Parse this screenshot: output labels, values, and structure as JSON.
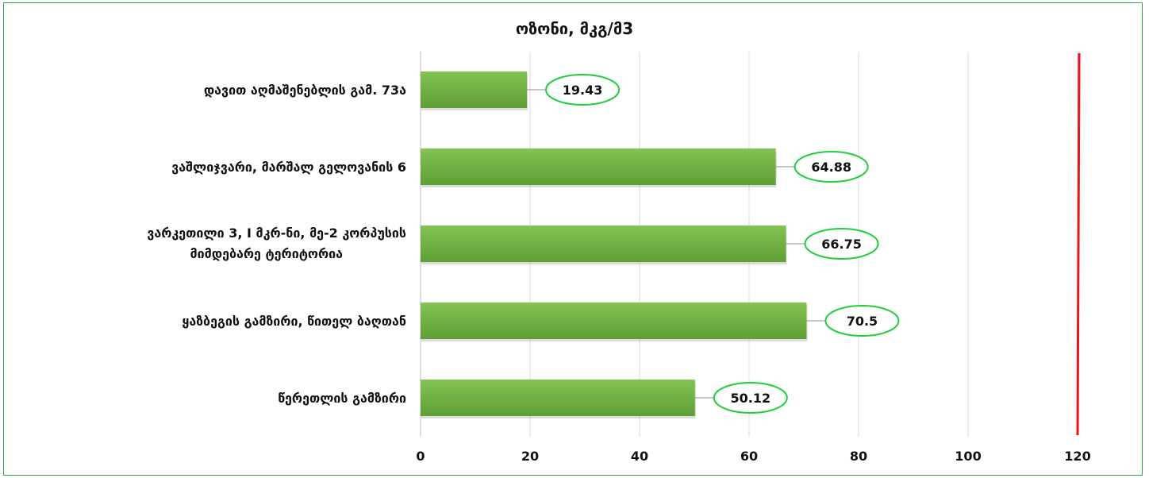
{
  "chart_data": {
    "type": "bar",
    "orientation": "horizontal",
    "title": "ოზონი, მკგ/მ3",
    "xlabel": "",
    "ylabel": "",
    "categories": [
      "დავით აღმაშენებლის გამ. 73ა",
      "ვაშლიჯვარი, მარშალ გელოვანის 6",
      "ვარკეთილი 3, I მკრ-ნი, მე-2 კორპუსის მიმდებარე ტერიტორია",
      "ყაზბეგის გამზირი, წითელ ბაღთან",
      "წერეთლის გამზირი"
    ],
    "values": [
      19.43,
      64.88,
      66.75,
      70.5,
      50.12
    ],
    "value_labels": [
      "19.43",
      "64.88",
      "66.75",
      "70.5",
      "50.12"
    ],
    "x_ticks": [
      "0",
      "20",
      "40",
      "60",
      "80",
      "100",
      "120"
    ],
    "xlim": [
      0,
      120
    ],
    "reference_line": {
      "value": 120,
      "color": "#e8151b"
    },
    "grid": true,
    "colors": {
      "bar": "#6aaa3e",
      "bar_light": "#7bbf4b",
      "label_border": "#1fcf3a",
      "frame": "#2e9e4f"
    }
  }
}
